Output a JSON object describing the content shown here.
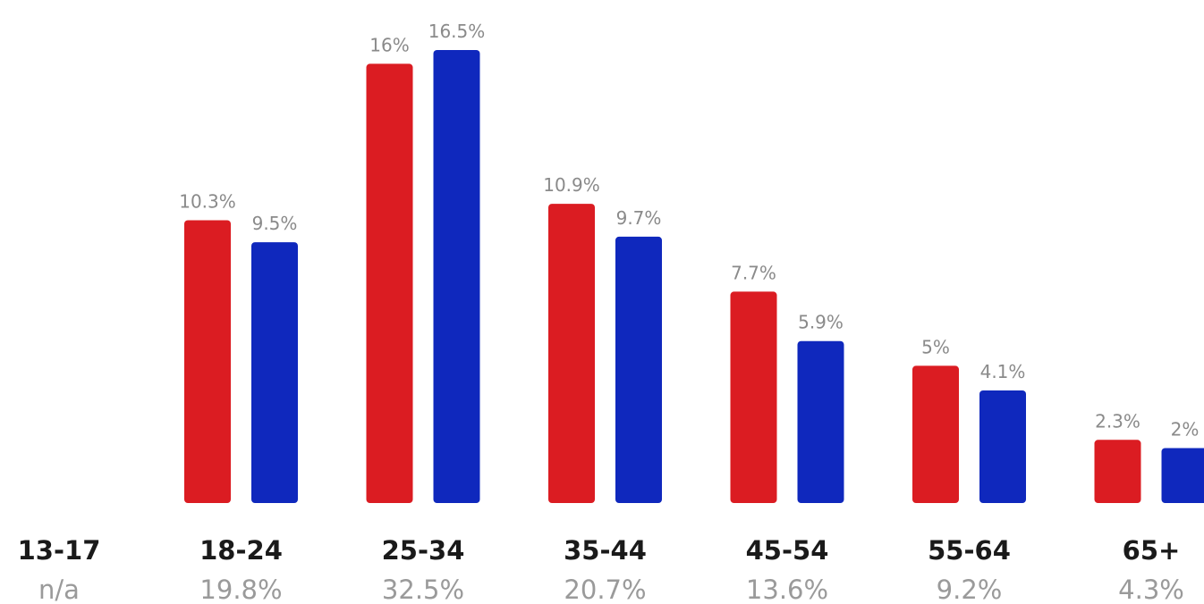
{
  "chart_data": {
    "type": "bar",
    "categories": [
      "13-17",
      "18-24",
      "25-34",
      "35-44",
      "45-54",
      "55-64",
      "65+"
    ],
    "category_totals": [
      "n/a",
      "19.8%",
      "32.5%",
      "20.7%",
      "13.6%",
      "9.2%",
      "4.3%"
    ],
    "series": [
      {
        "color": "#db1c22",
        "values": [
          null,
          10.3,
          16,
          10.9,
          7.7,
          5,
          2.3
        ],
        "labels": [
          "",
          "10.3%",
          "16%",
          "10.9%",
          "7.7%",
          "5%",
          "2.3%"
        ]
      },
      {
        "color": "#0f28bd",
        "values": [
          null,
          9.5,
          16.5,
          9.7,
          5.9,
          4.1,
          2
        ],
        "labels": [
          "",
          "9.5%",
          "16.5%",
          "9.7%",
          "5.9%",
          "4.1%",
          "2%"
        ]
      }
    ],
    "title": "",
    "xlabel": "",
    "ylabel": "",
    "ylim": [
      0,
      16.5
    ],
    "grid": false,
    "legend": "none"
  }
}
